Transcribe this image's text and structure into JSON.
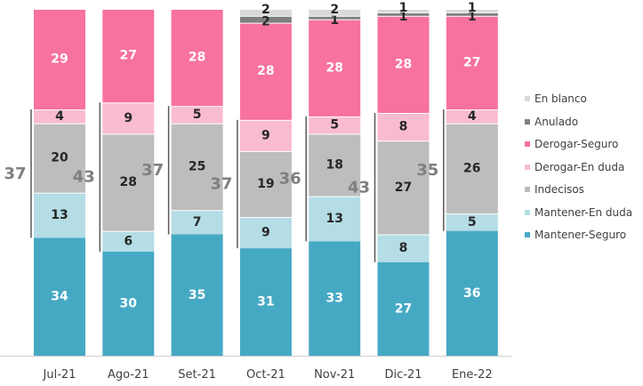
{
  "chart_data": {
    "type": "bar",
    "stacked": true,
    "categories": [
      "Jul-21",
      "Ago-21",
      "Set-21",
      "Oct-21",
      "Nov-21",
      "Dic-21",
      "Ene-22"
    ],
    "ylim": [
      0,
      100
    ],
    "grid": false,
    "legend_position": "right",
    "series": [
      {
        "name": "Mantener-Seguro",
        "color": "#46A9C4",
        "values": [
          34,
          30,
          35,
          31,
          33,
          27,
          36
        ]
      },
      {
        "name": "Mantener-En duda",
        "color": "#B4DDE6",
        "values": [
          13,
          6,
          7,
          9,
          13,
          8,
          5
        ]
      },
      {
        "name": "Indecisos",
        "color": "#BDBDBD",
        "values": [
          20,
          28,
          25,
          19,
          18,
          27,
          26
        ]
      },
      {
        "name": "Derogar-En duda",
        "color": "#F9BBD2",
        "values": [
          4,
          9,
          5,
          9,
          5,
          8,
          4
        ]
      },
      {
        "name": "Derogar-Seguro",
        "color": "#F7729D",
        "values": [
          29,
          27,
          28,
          28,
          28,
          28,
          27
        ]
      },
      {
        "name": "Anulado",
        "color": "#7F7F7F",
        "values": [
          0,
          0,
          0,
          2,
          1,
          1,
          1
        ]
      },
      {
        "name": "En blanco",
        "color": "#D9D9D9",
        "values": [
          0,
          0,
          0,
          2,
          2,
          1,
          1
        ]
      }
    ],
    "bracket_totals": [
      37,
      43,
      37,
      37,
      36,
      43,
      35
    ]
  }
}
